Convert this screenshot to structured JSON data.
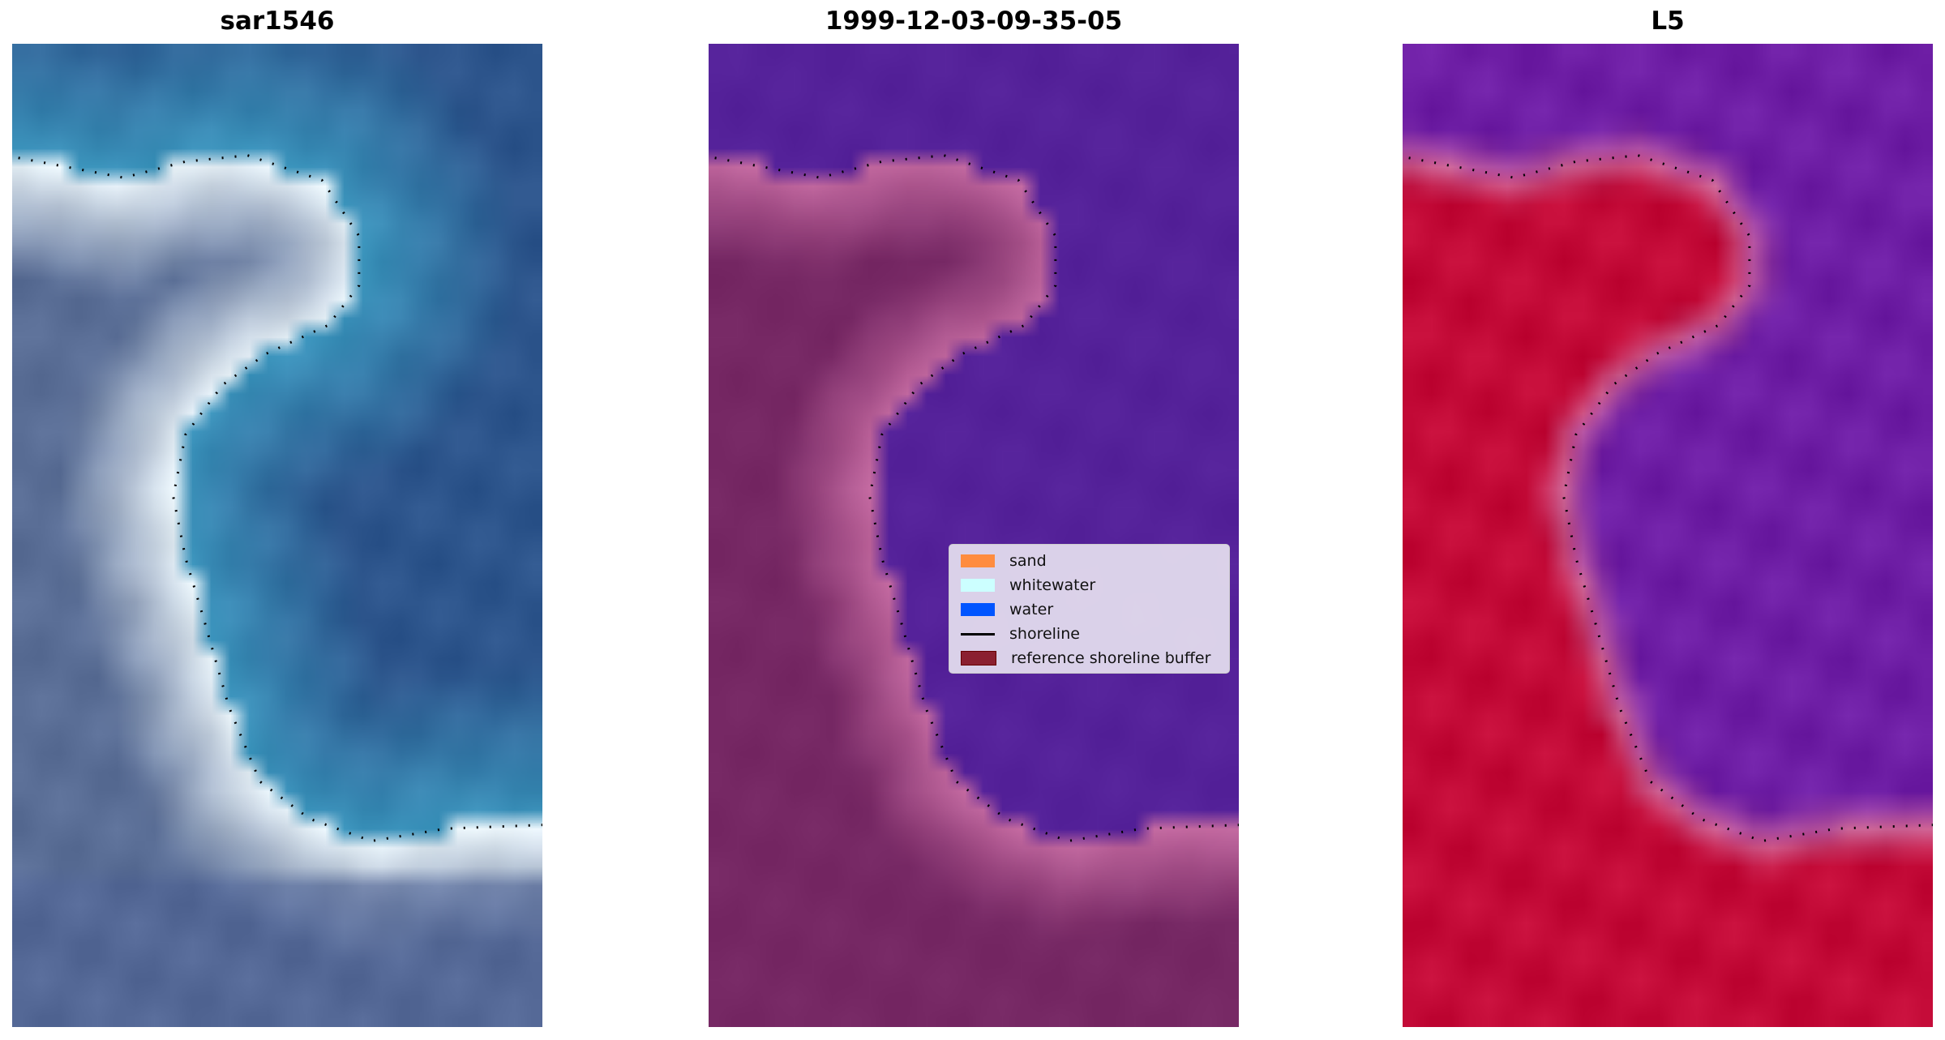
{
  "panels": [
    {
      "title": "sar1546",
      "style": "rgb"
    },
    {
      "title": "1999-12-03-09-35-05",
      "style": "classified"
    },
    {
      "title": "L5",
      "style": "index"
    }
  ],
  "legend": {
    "items": [
      {
        "label": "sand",
        "color": "#ff8c3f",
        "kind": "patch"
      },
      {
        "label": "whitewater",
        "color": "#ccffff",
        "kind": "patch"
      },
      {
        "label": "water",
        "color": "#0055ff",
        "kind": "patch"
      },
      {
        "label": "shoreline",
        "color": "#000000",
        "kind": "line"
      },
      {
        "label": "reference shoreline buffer",
        "color": "#8b2030",
        "kind": "patch"
      }
    ]
  }
}
